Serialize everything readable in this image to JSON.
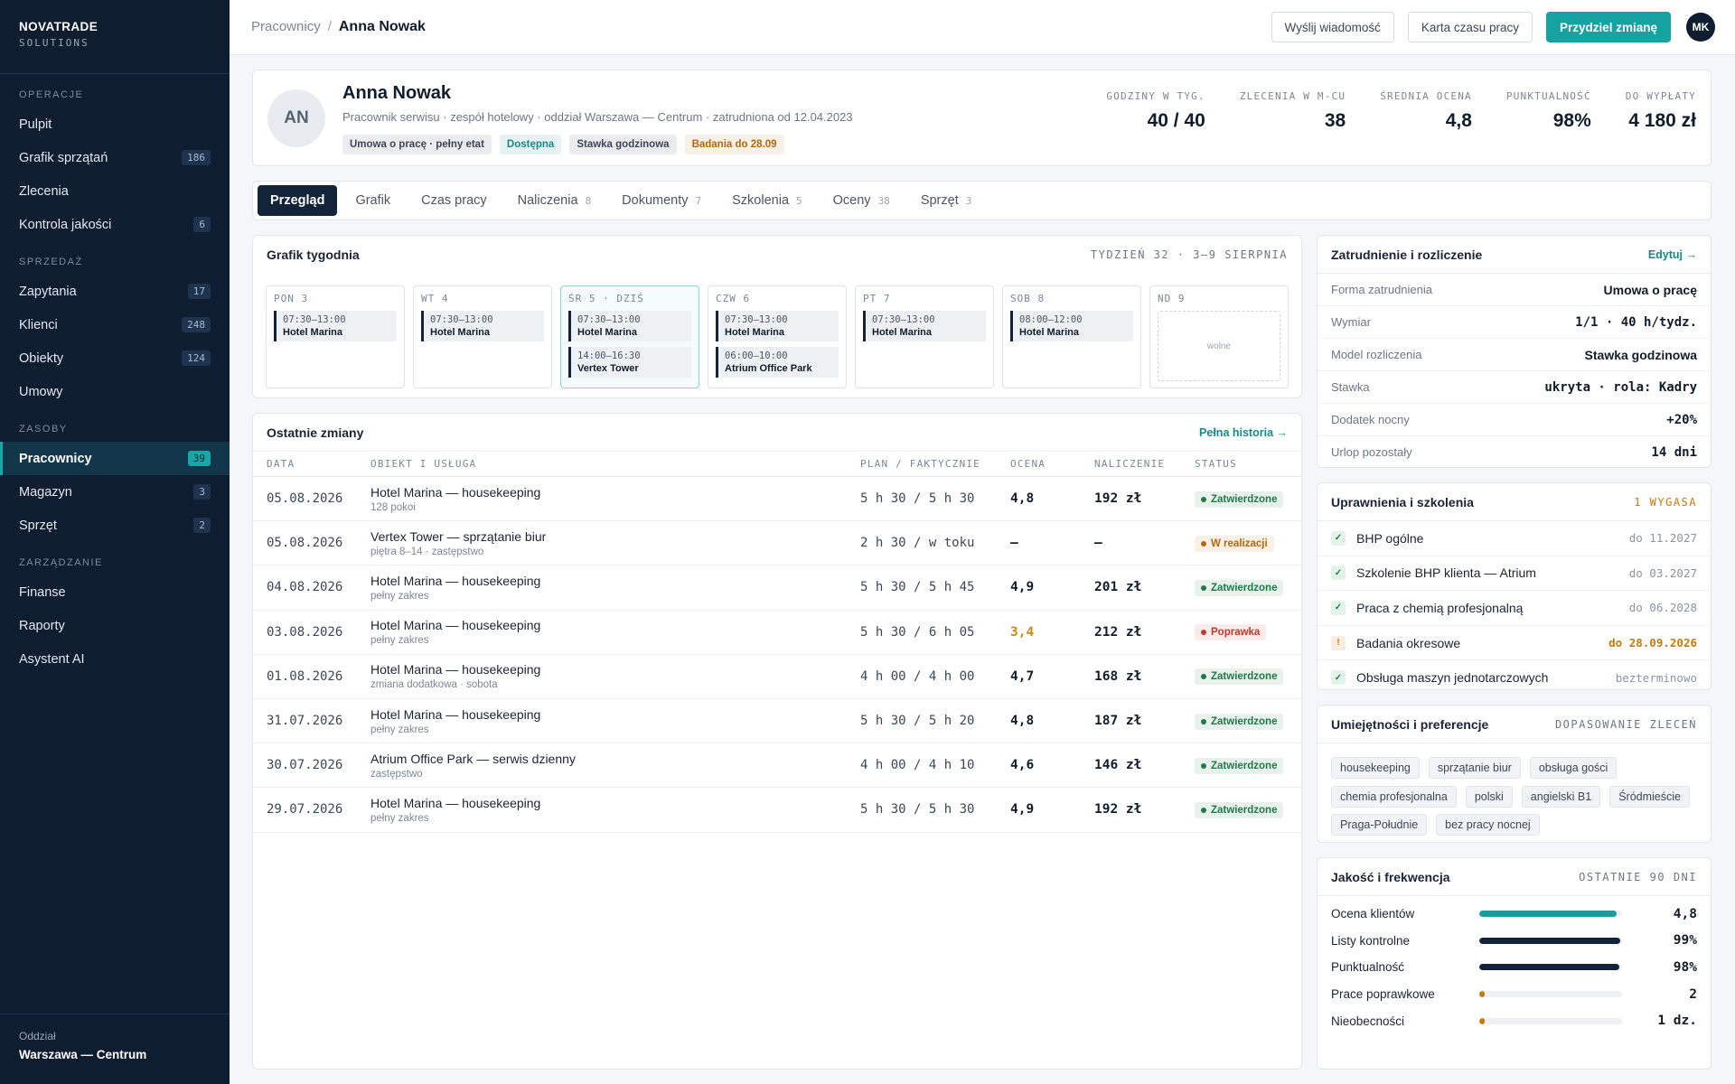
{
  "sidebar": {
    "brand": "NOVATRADE",
    "brand_sub": "SOLUTIONS",
    "sections": [
      {
        "title": "OPERACJE",
        "items": [
          {
            "label": "Pulpit"
          },
          {
            "label": "Grafik sprzątań",
            "badge": 186
          },
          {
            "label": "Zlecenia"
          },
          {
            "label": "Kontrola jakości",
            "badge": 6
          }
        ]
      },
      {
        "title": "SPRZEDAŻ",
        "items": [
          {
            "label": "Zapytania",
            "badge": 17
          },
          {
            "label": "Klienci",
            "badge": 248
          },
          {
            "label": "Obiekty",
            "badge": 124
          },
          {
            "label": "Umowy"
          }
        ]
      },
      {
        "title": "ZASOBY",
        "items": [
          {
            "label": "Pracownicy",
            "badge": 39,
            "active": true
          },
          {
            "label": "Magazyn",
            "badge": 3
          },
          {
            "label": "Sprzęt",
            "badge": 2
          }
        ]
      },
      {
        "title": "ZARZĄDZANIE",
        "items": [
          {
            "label": "Finanse"
          },
          {
            "label": "Raporty"
          },
          {
            "label": "Asystent AI"
          }
        ]
      }
    ],
    "footer_label": "Oddział",
    "footer_value": "Warszawa — Centrum"
  },
  "topbar": {
    "breadcrumb_parent": "Pracownicy",
    "breadcrumb_sep": "/",
    "breadcrumb_current": "Anna Nowak",
    "buttons": [
      "Wyślij wiadomość",
      "Karta czasu pracy",
      "Przydziel zmianę"
    ],
    "avatar": "MK"
  },
  "profile": {
    "initials": "AN",
    "name": "Anna Nowak",
    "meta": "Pracownik serwisu · zespół hotelowy · oddział Warszawa — Centrum · zatrudniona od 12.04.2023",
    "tags": [
      {
        "label": "Umowa o pracę · pełny etat",
        "color": "#3b4757"
      },
      {
        "label": "Dostępna",
        "color": "#138a86"
      },
      {
        "label": "Stawka godzinowa",
        "color": "#3b4757"
      },
      {
        "label": "Badania do 28.09",
        "color": "#b5670a"
      }
    ],
    "stats": [
      {
        "label": "GODZINY W TYG.",
        "value": "40 / 40"
      },
      {
        "label": "ZLECENIA W M-CU",
        "value": 38
      },
      {
        "label": "ŚREDNIA OCENA",
        "value": "4,8"
      },
      {
        "label": "PUNKTUALNOŚĆ",
        "value": "98%"
      },
      {
        "label": "DO WYPŁATY",
        "value": "4 180 zł"
      }
    ]
  },
  "tabs": [
    {
      "label": "Przegląd",
      "active": true
    },
    {
      "label": "Grafik"
    },
    {
      "label": "Czas pracy"
    },
    {
      "label": "Naliczenia",
      "count": 8
    },
    {
      "label": "Dokumenty",
      "count": 7
    },
    {
      "label": "Szkolenia",
      "count": 5
    },
    {
      "label": "Oceny",
      "count": 38
    },
    {
      "label": "Sprzęt",
      "count": 3
    }
  ],
  "schedule": {
    "title": "Grafik tygodnia",
    "week": "TYDZIEŃ 32 · 3–9 SIERPNIA",
    "days": [
      {
        "label": "PON 3",
        "shifts": [
          {
            "time": "07:30–13:00",
            "place": "Hotel Marina"
          }
        ]
      },
      {
        "label": "WT 4",
        "shifts": [
          {
            "time": "07:30–13:00",
            "place": "Hotel Marina"
          }
        ]
      },
      {
        "label": "ŚR 5 · DZIŚ",
        "today": true,
        "shifts": [
          {
            "time": "07:30–13:00",
            "place": "Hotel Marina"
          },
          {
            "time": "14:00–16:30",
            "place": "Vertex Tower"
          }
        ]
      },
      {
        "label": "CZW 6",
        "shifts": [
          {
            "time": "07:30–13:00",
            "place": "Hotel Marina"
          },
          {
            "time": "06:00–10:00",
            "place": "Atrium Office Park"
          }
        ]
      },
      {
        "label": "PT 7",
        "shifts": [
          {
            "time": "07:30–13:00",
            "place": "Hotel Marina"
          }
        ]
      },
      {
        "label": "SOB 8",
        "shifts": [
          {
            "time": "08:00–12:00",
            "place": "Hotel Marina"
          }
        ]
      },
      {
        "label": "ND 9",
        "free": "wolne"
      }
    ]
  },
  "shifts": {
    "title": "Ostatnie zmiany",
    "link": "Pełna historia →",
    "columns": [
      "DATA",
      "OBIEKT I USŁUGA",
      "PLAN / FAKTYCZNIE",
      "OCENA",
      "NALICZENIE",
      "STATUS"
    ],
    "rows": [
      {
        "date": "05.08.2026",
        "object": "Hotel Marina — housekeeping",
        "sub": "128 pokoi",
        "plan": "5 h 30 / 5 h 30",
        "rating": "4,8",
        "amount": "192 zł",
        "status": "Zatwierdzone",
        "status_color": "#1f7a48"
      },
      {
        "date": "05.08.2026",
        "object": "Vertex Tower — sprzątanie biur",
        "sub": "piętra 8–14 · zastępstwo",
        "plan": "2 h 30 / w toku",
        "rating": "—",
        "amount": "—",
        "status": "W realizacji",
        "status_color": "#b5670a"
      },
      {
        "date": "04.08.2026",
        "object": "Hotel Marina — housekeeping",
        "sub": "pełny zakres",
        "plan": "5 h 30 / 5 h 45",
        "rating": "4,9",
        "amount": "201 zł",
        "status": "Zatwierdzone",
        "status_color": "#1f7a48"
      },
      {
        "date": "03.08.2026",
        "object": "Hotel Marina — housekeeping",
        "sub": "pełny zakres",
        "plan": "5 h 30 / 6 h 05",
        "rating": "3,4",
        "rating_color": "#d08a12",
        "amount": "212 zł",
        "status": "Poprawka",
        "status_color": "#c0392b"
      },
      {
        "date": "01.08.2026",
        "object": "Hotel Marina — housekeeping",
        "sub": "zmiana dodatkowa · sobota",
        "plan": "4 h 00 / 4 h 00",
        "rating": "4,7",
        "amount": "168 zł",
        "status": "Zatwierdzone",
        "status_color": "#1f7a48"
      },
      {
        "date": "31.07.2026",
        "object": "Hotel Marina — housekeeping",
        "sub": "pełny zakres",
        "plan": "5 h 30 / 5 h 20",
        "rating": "4,8",
        "amount": "187 zł",
        "status": "Zatwierdzone",
        "status_color": "#1f7a48"
      },
      {
        "date": "30.07.2026",
        "object": "Atrium Office Park — serwis dzienny",
        "sub": "zastępstwo",
        "plan": "4 h 00 / 4 h 10",
        "rating": "4,6",
        "amount": "146 zł",
        "status": "Zatwierdzone",
        "status_color": "#1f7a48"
      },
      {
        "date": "29.07.2026",
        "object": "Hotel Marina — housekeeping",
        "sub": "pełny zakres",
        "plan": "5 h 30 / 5 h 30",
        "rating": "4,9",
        "amount": "192 zł",
        "status": "Zatwierdzone",
        "status_color": "#1f7a48"
      }
    ]
  },
  "employment": {
    "title": "Zatrudnienie i rozliczenie",
    "action": "Edytuj →",
    "rows": [
      {
        "label": "Forma zatrudnienia",
        "value": "Umowa o pracę"
      },
      {
        "label": "Wymiar",
        "value": "1/1 · 40 h/tydz."
      },
      {
        "label": "Model rozliczenia",
        "value": "Stawka godzinowa"
      },
      {
        "label": "Stawka",
        "value": "ukryta · rola: Kadry"
      },
      {
        "label": "Dodatek nocny",
        "value": "+20%"
      },
      {
        "label": "Urlop pozostały",
        "value": "14 dni"
      }
    ]
  },
  "certs": {
    "title": "Uprawnienia i szkolenia",
    "badge": "1 WYGASA",
    "items": [
      {
        "icon": "✓",
        "name": "BHP ogólne",
        "date": "do 11.2027"
      },
      {
        "icon": "✓",
        "name": "Szkolenie BHP klienta — Atrium",
        "date": "do 03.2027"
      },
      {
        "icon": "✓",
        "name": "Praca z chemią profesjonalną",
        "date": "do 06.2028"
      },
      {
        "icon": "!",
        "name": "Badania okresowe",
        "date": "do 28.09.2026",
        "color": "#c77a0a"
      },
      {
        "icon": "✓",
        "name": "Obsługa maszyn jednotarczowych",
        "date": "bezterminowo"
      }
    ]
  },
  "skills": {
    "title": "Umiejętności i preferencje",
    "action": "DOPASOWANIE ZLECEŃ",
    "tags": [
      "housekeeping",
      "sprzątanie biur",
      "obsługa gości",
      "chemia profesjonalna",
      "polski",
      "angielski B1",
      "Śródmieście",
      "Praga-Południe",
      "bez pracy nocnej"
    ]
  },
  "quality": {
    "title": "Jakość i frekwencja",
    "period": "OSTATNIE 90 DNI",
    "rows": [
      {
        "label": "Ocena klientów",
        "value": "4,8",
        "color": "#1a9c9c"
      },
      {
        "label": "Listy kontrolne",
        "value": "99%",
        "color": "#12233a"
      },
      {
        "label": "Punktualność",
        "value": "98%",
        "color": "#12233a"
      },
      {
        "label": "Prace poprawkowe",
        "value": 2,
        "color": "#c77a0a"
      },
      {
        "label": "Nieobecności",
        "value": "1 dz.",
        "color": "#c77a0a"
      }
    ]
  }
}
